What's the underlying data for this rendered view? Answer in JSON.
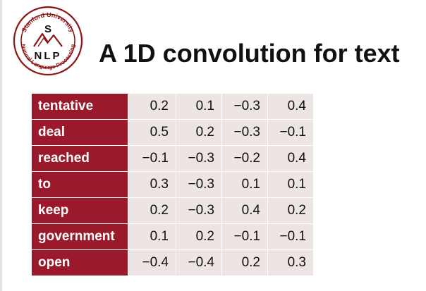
{
  "slide": {
    "title": "A 1D convolution for text"
  },
  "logo": {
    "top_text": "Stanford University",
    "bottom_text": "Natural Language Processing",
    "letter_s": "S",
    "letters": "NLP"
  },
  "table": {
    "rows": [
      {
        "word": "tentative",
        "values": [
          "0.2",
          "0.1",
          "−0.3",
          "0.4"
        ]
      },
      {
        "word": "deal",
        "values": [
          "0.5",
          "0.2",
          "−0.3",
          "−0.1"
        ]
      },
      {
        "word": "reached",
        "values": [
          "−0.1",
          "−0.3",
          "−0.2",
          "0.4"
        ]
      },
      {
        "word": "to",
        "values": [
          "0.3",
          "−0.3",
          "0.1",
          "0.1"
        ]
      },
      {
        "word": "keep",
        "values": [
          "0.2",
          "−0.3",
          "0.4",
          "0.2"
        ]
      },
      {
        "word": "government",
        "values": [
          "0.1",
          "0.2",
          "−0.1",
          "−0.1"
        ]
      },
      {
        "word": "open",
        "values": [
          "−0.4",
          "−0.4",
          "0.2",
          "0.3"
        ]
      }
    ]
  },
  "colors": {
    "word_cell": "#9a1a2c",
    "value_cell": "#ede4e4",
    "logo_red": "#8c1515"
  }
}
